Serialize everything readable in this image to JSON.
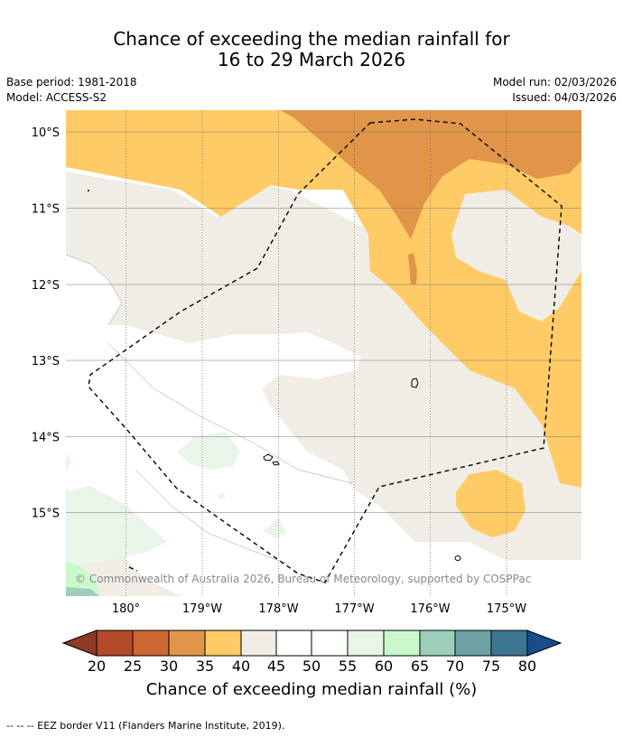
{
  "title": {
    "line1": "Chance of exceeding the median rainfall for",
    "line2": "16 to 29 March 2026"
  },
  "meta": {
    "base_period": "Base period: 1981-2018",
    "model": "Model: ACCESS-S2",
    "model_run": "Model run: 02/03/2026",
    "issued": "Issued: 04/03/2026"
  },
  "map": {
    "latitude_labels": [
      "10°S",
      "11°S",
      "12°S",
      "13°S",
      "14°S",
      "15°S"
    ],
    "longitude_labels": [
      "180°",
      "179°W",
      "178°W",
      "177°W",
      "176°W",
      "175°W"
    ],
    "copyright": "© Commonwealth of Australia 2026, Bureau of Meteorology, supported by COSPPac",
    "colors": {
      "p20_25": "#b34a29",
      "p25_30": "#cc6633",
      "p30_35": "#e09548",
      "p35_40": "#fecb66",
      "p40_45": "#f0ece6",
      "p45_55": "#ffffff",
      "p55_60": "#eaf5ea",
      "p60_65": "#caf9cb",
      "p65_70": "#9dcfbb",
      "p70_75": "#6ca2a6",
      "p75_80": "#3e7590",
      "below_20": "#8e3a24",
      "above_80": "#174e8a"
    }
  },
  "colorbar": {
    "ticks": [
      "20",
      "25",
      "30",
      "35",
      "40",
      "45",
      "50",
      "55",
      "60",
      "65",
      "70",
      "75",
      "80"
    ],
    "label": "Chance of exceeding median rainfall (%)"
  },
  "footer": {
    "legend": "--  --  -- EEZ border V11 (Flanders Marine Institute, 2019)."
  }
}
